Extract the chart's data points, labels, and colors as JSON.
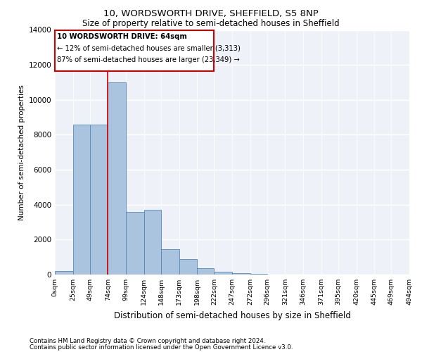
{
  "title1": "10, WORDSWORTH DRIVE, SHEFFIELD, S5 8NP",
  "title2": "Size of property relative to semi-detached houses in Sheffield",
  "xlabel": "Distribution of semi-detached houses by size in Sheffield",
  "ylabel": "Number of semi-detached properties",
  "footnote1": "Contains HM Land Registry data © Crown copyright and database right 2024.",
  "footnote2": "Contains public sector information licensed under the Open Government Licence v3.0.",
  "annotation_line1": "10 WORDSWORTH DRIVE: 64sqm",
  "annotation_line2": "← 12% of semi-detached houses are smaller (3,313)",
  "annotation_line3": "87% of semi-detached houses are larger (23,349) →",
  "bins": [
    0,
    25,
    49,
    74,
    99,
    124,
    148,
    173,
    198,
    222,
    247,
    272,
    296,
    321,
    346,
    371,
    395,
    420,
    445,
    469,
    494
  ],
  "bin_labels": [
    "0sqm",
    "25sqm",
    "49sqm",
    "74sqm",
    "99sqm",
    "124sqm",
    "148sqm",
    "173sqm",
    "198sqm",
    "222sqm",
    "247sqm",
    "272sqm",
    "296sqm",
    "321sqm",
    "346sqm",
    "371sqm",
    "395sqm",
    "420sqm",
    "445sqm",
    "469sqm",
    "494sqm"
  ],
  "counts": [
    200,
    8600,
    8600,
    11000,
    3600,
    3700,
    1450,
    900,
    350,
    150,
    80,
    30,
    10,
    5,
    2,
    1,
    0,
    0,
    0,
    0
  ],
  "bar_color": "#aac4e0",
  "bar_edge_color": "#5588bb",
  "vline_color": "#cc0000",
  "vline_x": 74,
  "box_color": "#cc0000",
  "background_color": "#eef2f8",
  "grid_color": "#d8dce8",
  "ylim": [
    0,
    14000
  ],
  "yticks": [
    0,
    2000,
    4000,
    6000,
    8000,
    10000,
    12000,
    14000
  ]
}
